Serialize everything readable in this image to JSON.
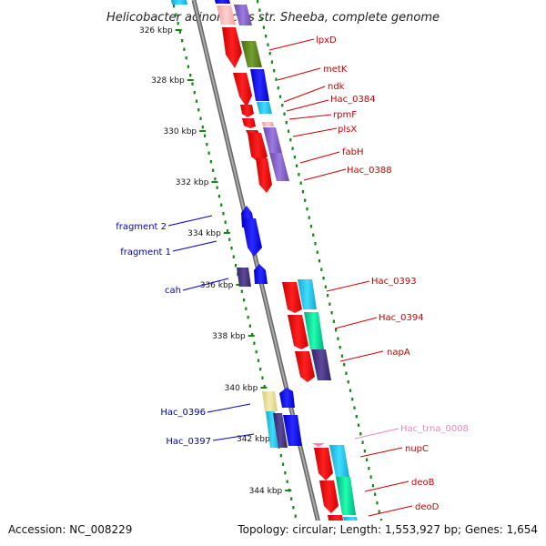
{
  "title": "Helicobacter acinonychis str. Sheeba, complete genome",
  "footer": {
    "accession": "Accession: NC_008229",
    "summary": "Topology: circular; Length: 1,553,927 bp; Genes: 1,654"
  },
  "colors": {
    "forward_cds": "#ee1111",
    "reverse_cds": "#1111ee",
    "label_red": "#cc0000",
    "label_blue": "#0000bb",
    "label_pink": "#ee88bb",
    "backbone": "#888888",
    "tick_dot": "#118811"
  },
  "ticks": [
    "326 kbp",
    "328 kbp",
    "330 kbp",
    "332 kbp",
    "334 kbp",
    "336 kbp",
    "338 kbp",
    "340 kbp",
    "342 kbp",
    "344 kbp"
  ],
  "gene_labels_right": [
    {
      "text": "lpxD",
      "color": "red"
    },
    {
      "text": "metK",
      "color": "red"
    },
    {
      "text": "ndk",
      "color": "red"
    },
    {
      "text": "Hac_0384",
      "color": "red"
    },
    {
      "text": "rpmF",
      "color": "red"
    },
    {
      "text": "plsX",
      "color": "red"
    },
    {
      "text": "fabH",
      "color": "red"
    },
    {
      "text": "Hac_0388",
      "color": "red"
    },
    {
      "text": "Hac_0393",
      "color": "red"
    },
    {
      "text": "Hac_0394",
      "color": "red"
    },
    {
      "text": "napA",
      "color": "red"
    },
    {
      "text": "Hac_trna_0008",
      "color": "pink"
    },
    {
      "text": "nupC",
      "color": "red"
    },
    {
      "text": "deoB",
      "color": "red"
    },
    {
      "text": "deoD",
      "color": "red"
    }
  ],
  "gene_labels_left": [
    {
      "text": "fragment 2",
      "color": "blue"
    },
    {
      "text": "fragment 1",
      "color": "blue"
    },
    {
      "text": "cah",
      "color": "blue"
    },
    {
      "text": "Hac_0396",
      "color": "blue"
    },
    {
      "text": "Hac_0397",
      "color": "blue"
    }
  ]
}
